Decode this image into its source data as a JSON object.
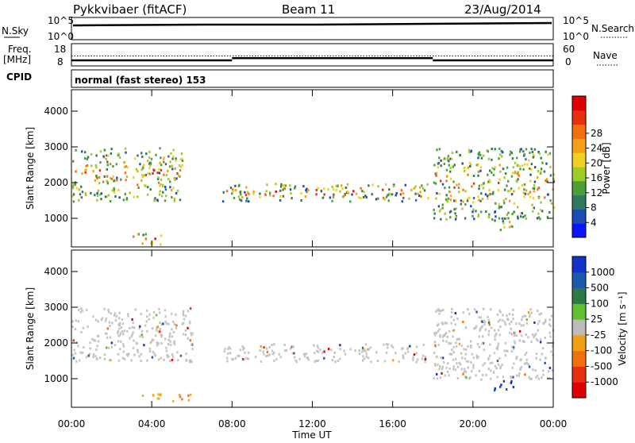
{
  "header": {
    "station": "Pykkvibaer (fitACF)",
    "beam": "Beam 11",
    "date": "23/Aug/2014"
  },
  "top_panels": {
    "nsky": {
      "label": "N.Sky",
      "ticks": [
        "10^5",
        "10^0"
      ]
    },
    "nsearch": {
      "label": "N.Search",
      "ticks": [
        "10^5",
        "10^0"
      ]
    },
    "freq": {
      "label_line1": "Freq.",
      "label_line2": "[MHz]",
      "ticks": [
        "18",
        "8"
      ],
      "values": {
        "segments": [
          [
            0,
            8,
            10.5
          ],
          [
            8,
            18,
            11.5
          ],
          [
            18,
            24,
            10.5
          ]
        ],
        "dotted": 12.5
      }
    },
    "nave": {
      "label": "Nave",
      "ticks": [
        "60",
        "0"
      ]
    },
    "cpid": {
      "label": "CPID",
      "value": "normal (fast stereo) 153"
    }
  },
  "chart_data": [
    {
      "type": "heatmap",
      "title": "",
      "ylabel": "Slant Range [km]",
      "xlabel": "Time UT",
      "ylim": [
        200,
        4600
      ],
      "yticks": [
        "1000",
        "2000",
        "3000",
        "4000"
      ],
      "xlim": [
        0,
        24
      ],
      "colorbar": {
        "label": "Power [dB]",
        "ticks": [
          "4",
          "8",
          "12",
          "16",
          "20",
          "24",
          "28"
        ],
        "colors": [
          "#0a14ff",
          "#1c4db5",
          "#2f7a5e",
          "#4ba03a",
          "#9ccc2a",
          "#f0d020",
          "#f4a018",
          "#f07010",
          "#e83010",
          "#e00000"
        ]
      },
      "bands": [
        {
          "t0": 0,
          "t1": 5.5,
          "r0": 1500,
          "r1": 3000,
          "level": 0.6
        },
        {
          "t0": 7.5,
          "t1": 18,
          "r0": 1500,
          "r1": 2000,
          "level": 0.75
        },
        {
          "t0": 18,
          "t1": 24,
          "r0": 1000,
          "r1": 3000,
          "level": 0.55
        },
        {
          "t0": 3,
          "t1": 4.5,
          "r0": 300,
          "r1": 600,
          "level": 0.9
        },
        {
          "t0": 21,
          "t1": 22,
          "r0": 700,
          "r1": 1000,
          "level": 0.85
        }
      ]
    },
    {
      "type": "heatmap",
      "title": "",
      "ylabel": "Slant Range [km]",
      "xlabel": "Time UT",
      "ylim": [
        200,
        4600
      ],
      "yticks": [
        "1000",
        "2000",
        "3000",
        "4000"
      ],
      "xlim": [
        0,
        24
      ],
      "colorbar": {
        "label": "Velocity [m s⁻¹]",
        "ticks": [
          "1000",
          "500",
          "100",
          "25",
          "-25",
          "-100",
          "-500",
          "-1000"
        ],
        "colors": [
          "#1232c8",
          "#1c5ab0",
          "#2e7a46",
          "#60c030",
          "#bcbcbc",
          "#f0a010",
          "#f07010",
          "#e83010",
          "#e00000"
        ]
      },
      "bands": [
        {
          "t0": 0,
          "t1": 6,
          "r0": 1500,
          "r1": 3000,
          "color": "gray"
        },
        {
          "t0": 7.5,
          "t1": 18,
          "r0": 1500,
          "r1": 2000,
          "color": "gray"
        },
        {
          "t0": 18,
          "t1": 24,
          "r0": 1000,
          "r1": 3000,
          "color": "gray"
        },
        {
          "t0": 3,
          "t1": 6,
          "r0": 400,
          "r1": 600,
          "color": "orange"
        },
        {
          "t0": 21,
          "t1": 22,
          "r0": 700,
          "r1": 1000,
          "color": "blue"
        }
      ]
    }
  ],
  "xaxis": {
    "ticks": [
      "00:00",
      "04:00",
      "08:00",
      "12:00",
      "16:00",
      "20:00",
      "00:00"
    ],
    "label": "Time UT"
  }
}
